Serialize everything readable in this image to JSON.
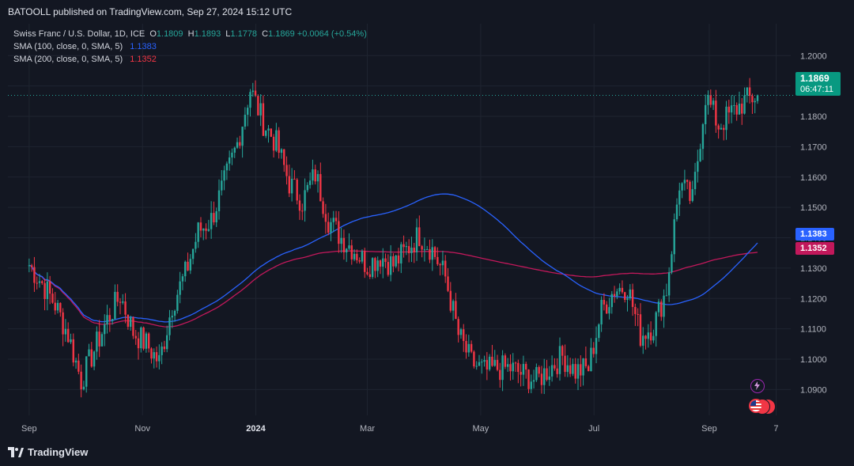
{
  "header": {
    "publish_line": "BATOOLL published on TradingView.com, Sep 27, 2024 15:12 UTC"
  },
  "legend": {
    "symbol": "Swiss Franc / U.S. Dollar, 1D, ICE",
    "o_label": "O",
    "o_value": "1.1809",
    "h_label": "H",
    "h_value": "1.1893",
    "l_label": "L",
    "l_value": "1.1778",
    "c_label": "C",
    "c_value": "1.1869",
    "change": "+0.0064 (+0.54%)",
    "sma100_label": "SMA (100, close, 0, SMA, 5)",
    "sma100_value": "1.1383",
    "sma200_label": "SMA (200, close, 0, SMA, 5)",
    "sma200_value": "1.1352"
  },
  "price_tags": {
    "last_price": "1.1869",
    "countdown": "06:47:11",
    "sma100": "1.1383",
    "sma200": "1.1352"
  },
  "footer": {
    "brand": "TradingView"
  },
  "colors": {
    "up": "#26a69a",
    "down": "#f23645",
    "sma100": "#2962ff",
    "sma200": "#c2185b",
    "bg": "#131722"
  },
  "chart_data": {
    "type": "candlestick",
    "title": "Swiss Franc / U.S. Dollar, 1D, ICE",
    "x_tick_labels": [
      "Sep",
      "Nov",
      "2024",
      "Mar",
      "May",
      "Jul",
      "Sep",
      "7"
    ],
    "y_ticks": [
      1.09,
      1.1,
      1.11,
      1.12,
      1.13,
      1.14,
      1.15,
      1.16,
      1.17,
      1.18,
      1.19,
      1.2
    ],
    "ylim": [
      1.0815,
      1.2105
    ],
    "grid": true,
    "close_series": {
      "dates": [
        "2023-09-01",
        "2023-09-08",
        "2023-09-15",
        "2023-09-22",
        "2023-09-29",
        "2023-10-06",
        "2023-10-13",
        "2023-10-20",
        "2023-10-27",
        "2023-11-03",
        "2023-11-10",
        "2023-11-17",
        "2023-11-24",
        "2023-12-01",
        "2023-12-08",
        "2023-12-15",
        "2023-12-22",
        "2023-12-29",
        "2024-01-05",
        "2024-01-12",
        "2024-01-19",
        "2024-01-26",
        "2024-02-02",
        "2024-02-09",
        "2024-02-16",
        "2024-02-23",
        "2024-03-01",
        "2024-03-08",
        "2024-03-15",
        "2024-03-22",
        "2024-03-29",
        "2024-04-05",
        "2024-04-12",
        "2024-04-19",
        "2024-04-26",
        "2024-05-03",
        "2024-05-10",
        "2024-05-17",
        "2024-05-24",
        "2024-05-31",
        "2024-06-07",
        "2024-06-14",
        "2024-06-21",
        "2024-06-28",
        "2024-07-05",
        "2024-07-12",
        "2024-07-19",
        "2024-07-26",
        "2024-08-02",
        "2024-08-09",
        "2024-08-16",
        "2024-08-23",
        "2024-08-30",
        "2024-09-06",
        "2024-09-13",
        "2024-09-20",
        "2024-09-27"
      ],
      "values": [
        1.131,
        1.125,
        1.118,
        1.108,
        1.093,
        1.103,
        1.113,
        1.121,
        1.109,
        1.105,
        1.099,
        1.118,
        1.128,
        1.142,
        1.146,
        1.158,
        1.171,
        1.189,
        1.178,
        1.171,
        1.158,
        1.152,
        1.161,
        1.146,
        1.14,
        1.136,
        1.131,
        1.134,
        1.131,
        1.136,
        1.141,
        1.136,
        1.127,
        1.108,
        1.099,
        1.096,
        1.097,
        1.097,
        1.095,
        1.093,
        1.097,
        1.101,
        1.096,
        1.097,
        1.116,
        1.123,
        1.124,
        1.108,
        1.111,
        1.123,
        1.158,
        1.152,
        1.187,
        1.177,
        1.181,
        1.185,
        1.1869
      ]
    },
    "sma100": {
      "name": "SMA (100, close, 0, SMA, 5)",
      "last": 1.1383
    },
    "sma200": {
      "name": "SMA (200, close, 0, SMA, 5)",
      "last": 1.1352
    }
  }
}
